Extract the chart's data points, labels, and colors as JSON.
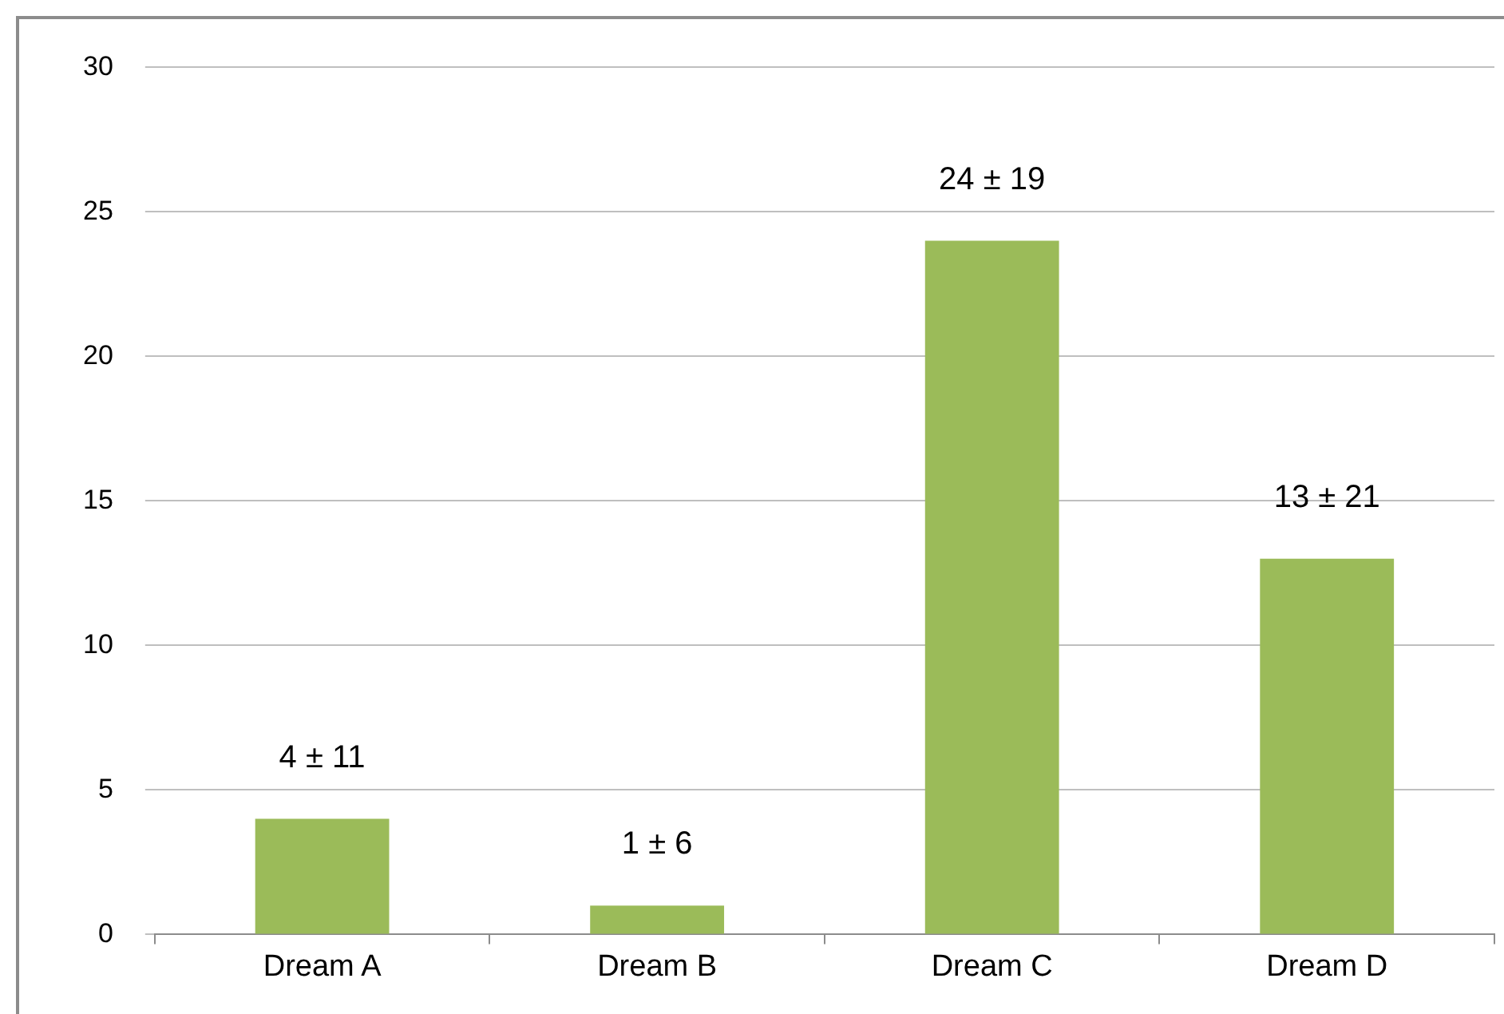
{
  "chart_data": {
    "type": "bar",
    "categories": [
      "Dream A",
      "Dream B",
      "Dream C",
      "Dream D"
    ],
    "values": [
      4,
      1,
      24,
      13
    ],
    "color": "#9bbb59",
    "value_labels": [
      "4 ± 11",
      "1 ± 6",
      "24 ± 19",
      "13 ± 21"
    ],
    "ylim": [
      0,
      30
    ],
    "yticks": [
      0,
      5,
      10,
      15,
      20,
      25,
      30
    ],
    "grid": "y",
    "legend": false
  }
}
